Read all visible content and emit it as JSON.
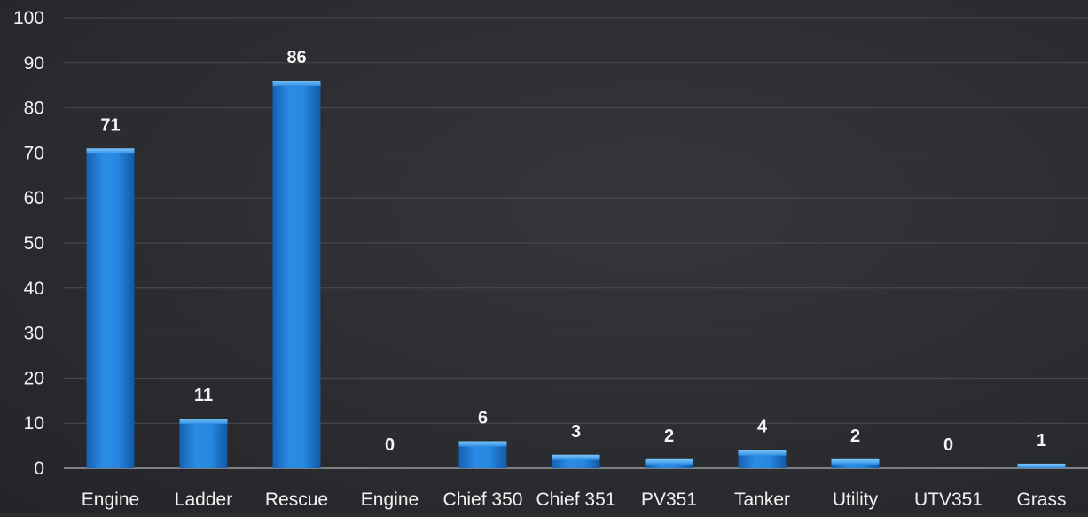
{
  "chart_data": {
    "type": "bar",
    "categories": [
      "Engine",
      "Ladder",
      "Rescue",
      "Engine",
      "Chief 350",
      "Chief 351",
      "PV351",
      "Tanker",
      "Utility",
      "UTV351",
      "Grass"
    ],
    "values": [
      71,
      11,
      86,
      0,
      6,
      3,
      2,
      4,
      2,
      0,
      1
    ],
    "ylim": [
      0,
      100
    ],
    "yticks": [
      0,
      10,
      20,
      30,
      40,
      50,
      60,
      70,
      80,
      90,
      100
    ],
    "grid": true,
    "legend": "none",
    "bar_color": "#1f7fd6",
    "bar_highlight": "#5fb1f2",
    "label_color": "#f5f5f5"
  }
}
